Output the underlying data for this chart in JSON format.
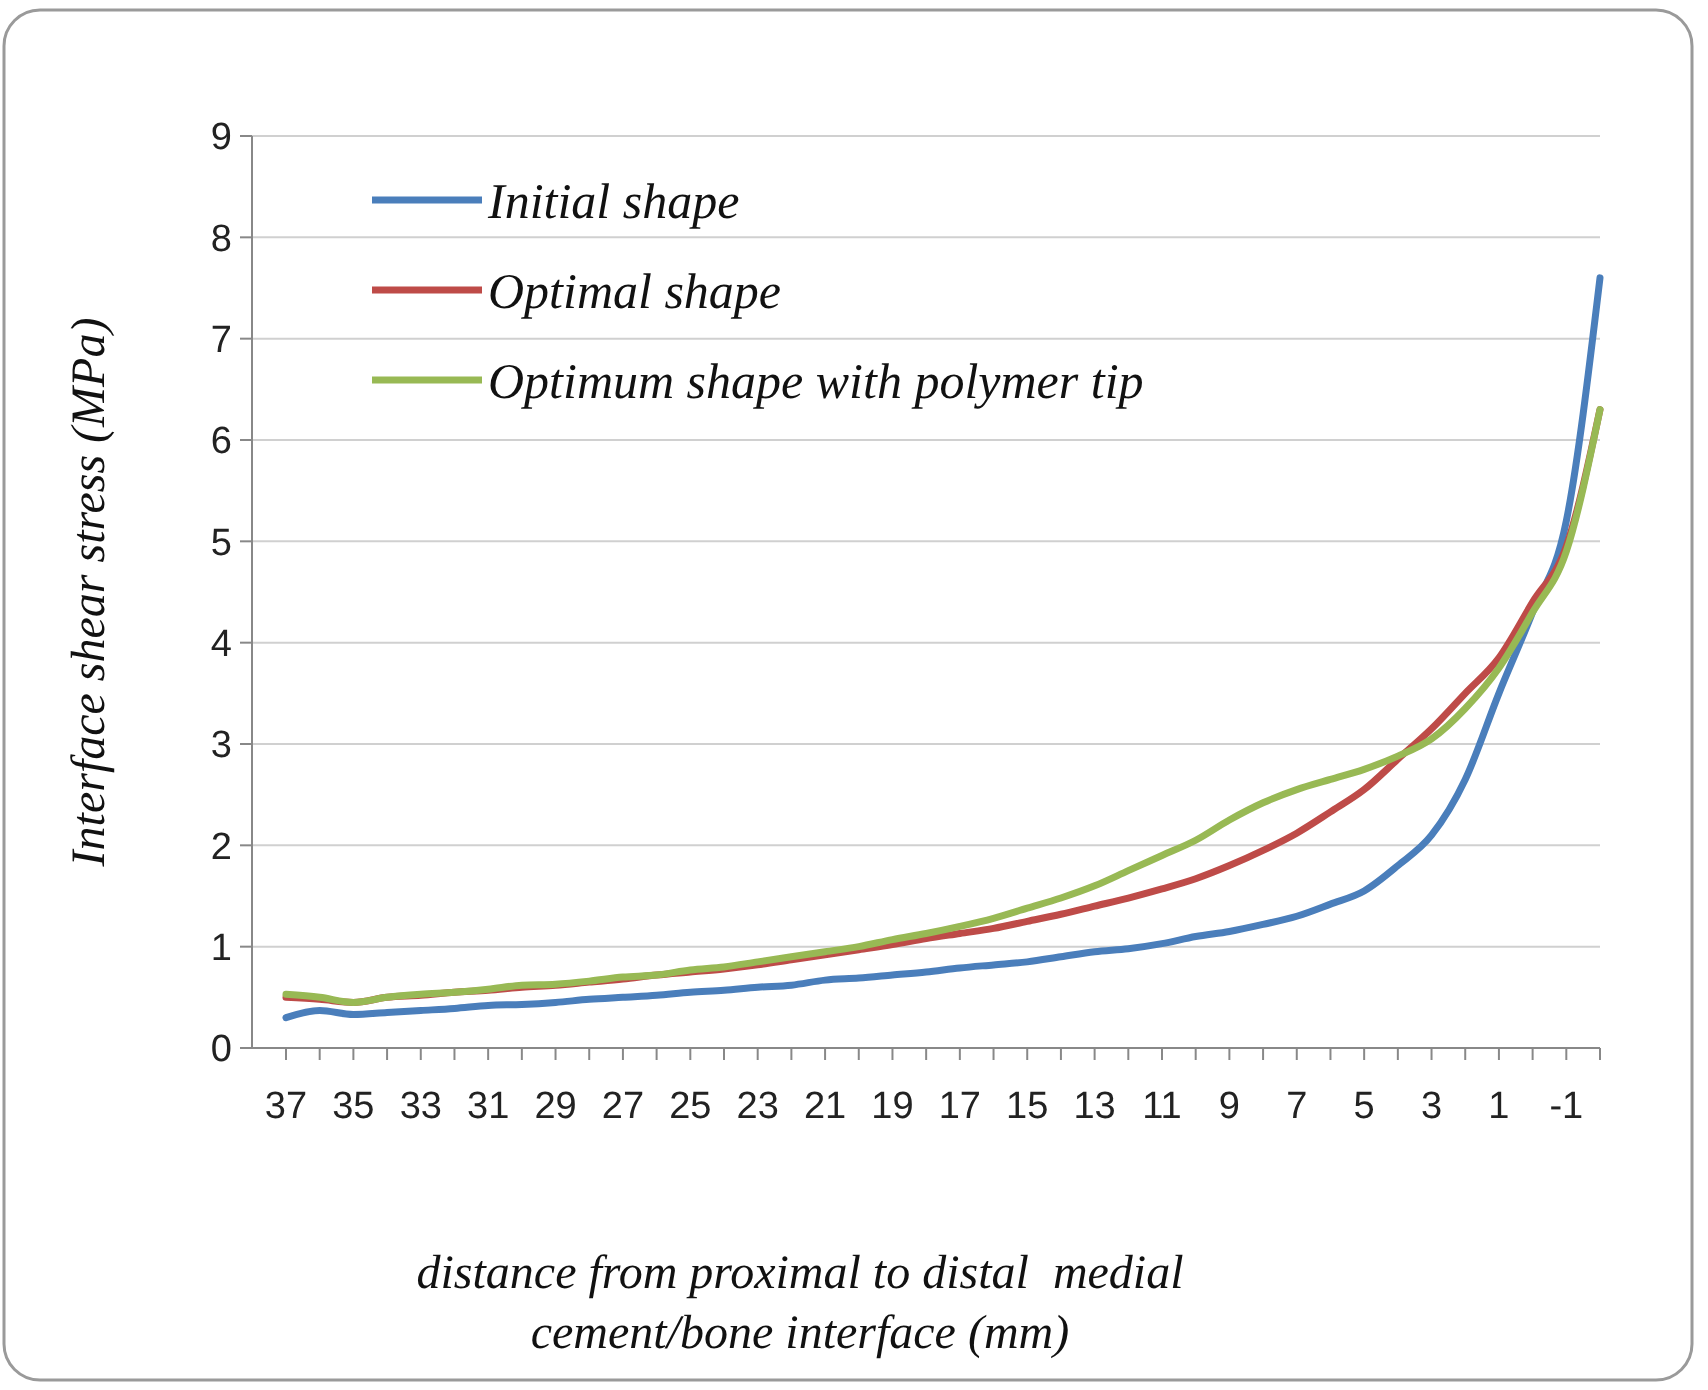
{
  "chart_data": {
    "type": "line",
    "xlabel": "distance from proximal to distal  medial\ncement/bone interface (mm)",
    "ylabel": "Interface shear stress (MPa)",
    "categories": [
      "37",
      null,
      "35",
      null,
      "33",
      null,
      "31",
      null,
      "29",
      null,
      "27",
      null,
      "25",
      null,
      "23",
      null,
      "21",
      null,
      "19",
      null,
      "17",
      null,
      "15",
      null,
      "13",
      null,
      "11",
      null,
      "9",
      null,
      "7",
      null,
      "5",
      null,
      "3",
      null,
      "1",
      null,
      "-1",
      null
    ],
    "ylim": [
      0,
      9
    ],
    "yticks": [
      0,
      1,
      2,
      3,
      4,
      5,
      6,
      7,
      8,
      9
    ],
    "grid": "y",
    "legend": "top left",
    "line_style": "solid",
    "series": [
      {
        "name": "Initial shape",
        "color": "#4a7ebb",
        "values": [
          0.3,
          0.37,
          0.33,
          0.35,
          0.37,
          0.39,
          0.42,
          0.43,
          0.45,
          0.48,
          0.5,
          0.52,
          0.55,
          0.57,
          0.6,
          0.62,
          0.67,
          0.69,
          0.72,
          0.75,
          0.79,
          0.82,
          0.85,
          0.9,
          0.95,
          0.98,
          1.03,
          1.1,
          1.15,
          1.22,
          1.3,
          1.42,
          1.55,
          1.8,
          2.1,
          2.65,
          3.5,
          4.3,
          5.2,
          7.6
        ]
      },
      {
        "name": "Optimal shape",
        "color": "#be4b48",
        "values": [
          0.5,
          0.48,
          0.45,
          0.5,
          0.52,
          0.55,
          0.57,
          0.6,
          0.62,
          0.65,
          0.68,
          0.72,
          0.75,
          0.78,
          0.82,
          0.87,
          0.92,
          0.97,
          1.02,
          1.08,
          1.13,
          1.18,
          1.25,
          1.32,
          1.4,
          1.48,
          1.57,
          1.67,
          1.8,
          1.95,
          2.12,
          2.33,
          2.55,
          2.85,
          3.15,
          3.5,
          3.85,
          4.4,
          4.95,
          6.3
        ]
      },
      {
        "name": "Optimum shape with polymer tip",
        "color": "#98b954",
        "values": [
          0.53,
          0.5,
          0.45,
          0.5,
          0.53,
          0.55,
          0.58,
          0.62,
          0.63,
          0.66,
          0.7,
          0.72,
          0.77,
          0.8,
          0.85,
          0.9,
          0.95,
          1.0,
          1.07,
          1.13,
          1.2,
          1.28,
          1.38,
          1.48,
          1.6,
          1.75,
          1.9,
          2.05,
          2.25,
          2.42,
          2.55,
          2.65,
          2.75,
          2.88,
          3.05,
          3.35,
          3.75,
          4.3,
          4.9,
          6.3
        ]
      }
    ]
  }
}
